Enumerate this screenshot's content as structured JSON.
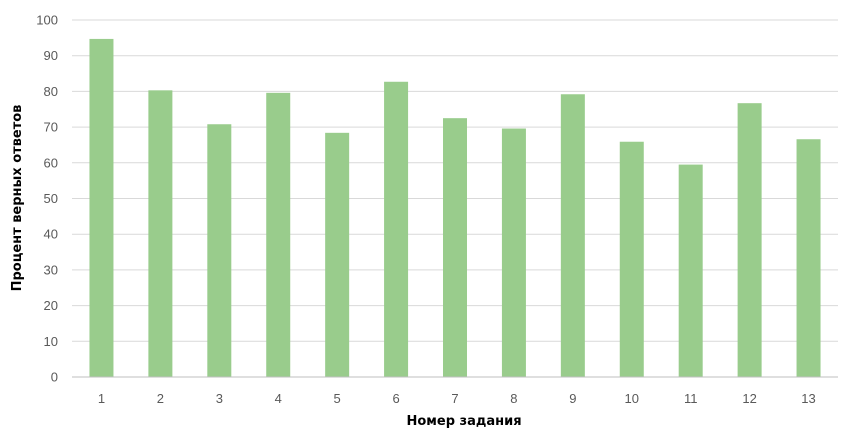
{
  "chart_data": {
    "type": "bar",
    "title": "",
    "xlabel": "Номер задания",
    "ylabel": "Процент верных ответов",
    "categories": [
      "1",
      "2",
      "3",
      "4",
      "5",
      "6",
      "7",
      "8",
      "9",
      "10",
      "11",
      "12",
      "13"
    ],
    "values": [
      94.7,
      80.3,
      70.8,
      79.6,
      68.4,
      82.7,
      72.5,
      69.6,
      79.2,
      65.9,
      59.5,
      76.7,
      66.6
    ],
    "ylim": [
      0,
      100
    ],
    "yticks": [
      "0",
      "10",
      "20",
      "30",
      "40",
      "50",
      "60",
      "70",
      "80",
      "90",
      "100"
    ],
    "grid": true,
    "legend": "none",
    "bar_color": "#99cc8c",
    "grid_color": "#d9d9d9",
    "axis_color": "#bfbfbf"
  }
}
